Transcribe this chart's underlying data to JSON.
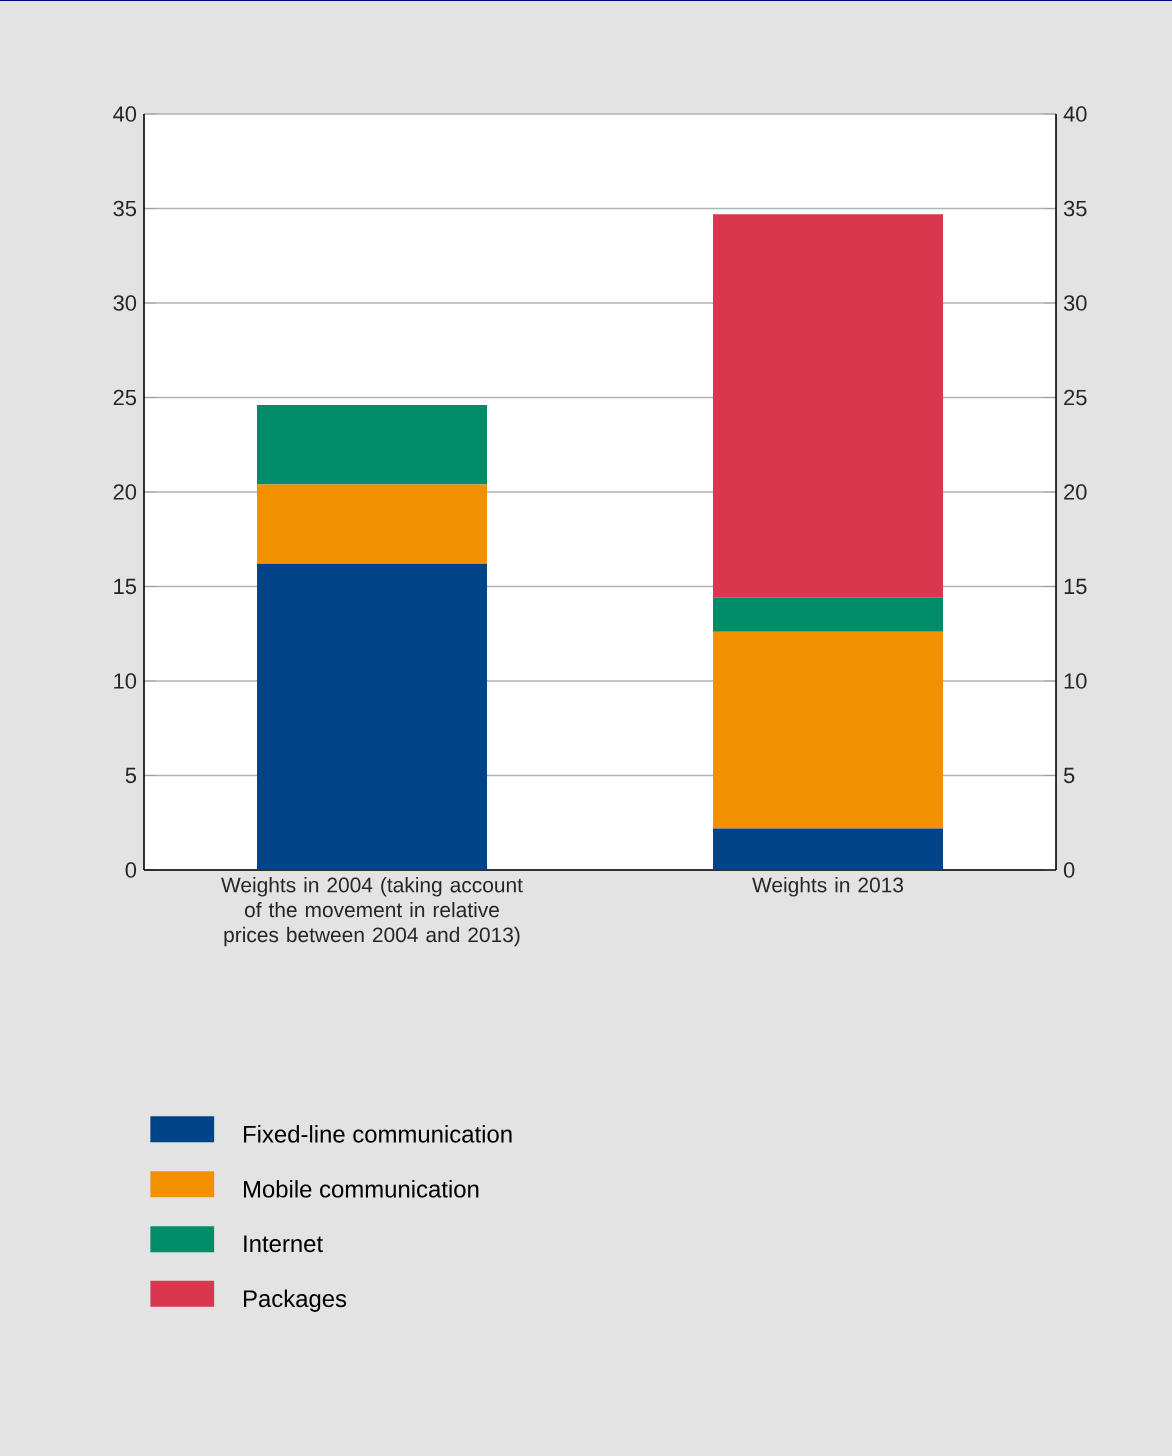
{
  "chart_data": {
    "type": "bar",
    "stacked": true,
    "categories": [
      "Weights in 2004 (taking account of the movement in relative prices between 2004 and 2013)",
      "Weights in 2013"
    ],
    "series": [
      {
        "name": "Fixed-line communication",
        "color": "#004487",
        "values": [
          16.2,
          2.2
        ]
      },
      {
        "name": "Mobile communication",
        "color": "#f29100",
        "values": [
          4.2,
          10.4
        ]
      },
      {
        "name": "Internet",
        "color": "#008c69",
        "values": [
          4.2,
          1.8
        ]
      },
      {
        "name": "Packages",
        "color": "#d9374d",
        "values": [
          0,
          20.3
        ]
      }
    ],
    "ylim": [
      0,
      40
    ],
    "yticks": [
      0,
      5,
      10,
      15,
      20,
      25,
      30,
      35,
      40
    ],
    "y2lim": [
      0,
      40
    ],
    "y2ticks": [
      0,
      5,
      10,
      15,
      20,
      25,
      30,
      35,
      40
    ],
    "grid": "y",
    "legend": "bottom"
  }
}
